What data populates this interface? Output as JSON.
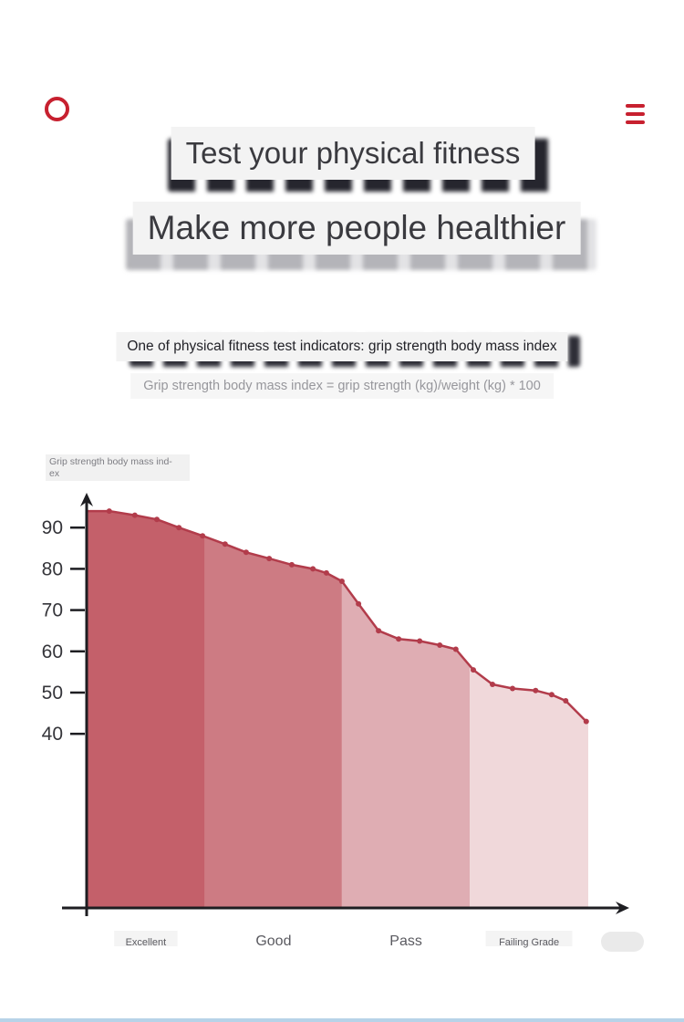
{
  "topbar": {
    "logo_color": "#c7202f",
    "menu_color": "#c7202f"
  },
  "hero": {
    "headline1": "Test your physical fitness",
    "headline2": "Make more people healthier",
    "subtitle": "One of physical fitness test indicators: grip strength body mass index",
    "formula": "Grip strength body mass index = grip strength (kg)/weight (kg) * 100"
  },
  "chart_data": {
    "type": "area",
    "title": "",
    "xlabel": "",
    "ylabel": "Grip strength body mass index",
    "ylabel_lines": [
      "Grip strength body mass ind-",
      "ex"
    ],
    "yticks": [
      90,
      80,
      70,
      60,
      50,
      40
    ],
    "ylim": [
      0,
      100
    ],
    "grid": false,
    "legend": "none",
    "axis_color": "#1e1e22",
    "line_color": "#b23c4b",
    "point_color": "#b23c4b",
    "bands": [
      {
        "label": "Excellent",
        "color": "#c4606a",
        "from": 0.0,
        "to": 0.236
      },
      {
        "label": "Good",
        "color": "#cd7b83",
        "from": 0.236,
        "to": 0.509
      },
      {
        "label": "Pass",
        "color": "#dfadb3",
        "from": 0.509,
        "to": 0.764
      },
      {
        "label": "Failing Grade",
        "color": "#f0d8da",
        "from": 0.764,
        "to": 1.0
      }
    ],
    "points": {
      "x": [
        0,
        0.045,
        0.096,
        0.14,
        0.184,
        0.231,
        0.276,
        0.318,
        0.364,
        0.409,
        0.451,
        0.478,
        0.509,
        0.542,
        0.582,
        0.622,
        0.664,
        0.704,
        0.736,
        0.771,
        0.809,
        0.849,
        0.895,
        0.927,
        0.955,
        0.996
      ],
      "y": [
        94,
        94,
        93,
        92,
        90,
        88,
        86,
        84,
        82.5,
        81,
        80,
        79,
        77,
        71.5,
        65,
        63,
        62.5,
        61.5,
        60.5,
        55.5,
        52,
        51,
        50.5,
        49.5,
        48,
        43
      ]
    }
  }
}
